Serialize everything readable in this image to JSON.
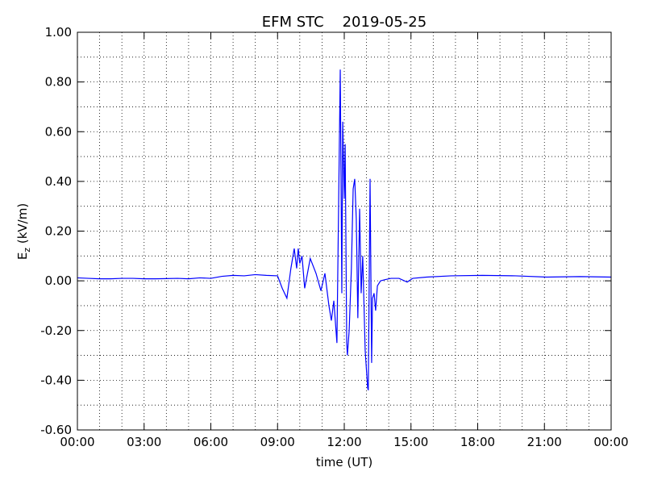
{
  "chart_data": {
    "type": "line",
    "title": "EFM STC    2019-05-25",
    "xlabel": "time (UT)",
    "ylabel": {
      "base": "E",
      "sub": "z",
      "unit": " (kV/m)"
    },
    "x": [
      0,
      0.5,
      1,
      1.5,
      2,
      2.5,
      3,
      3.5,
      4,
      4.5,
      5,
      5.5,
      6,
      6.5,
      7,
      7.5,
      8,
      8.5,
      9,
      9.21,
      9.42,
      9.6,
      9.75,
      9.86,
      9.93,
      10.0,
      10.1,
      10.22,
      10.47,
      10.73,
      10.95,
      11.13,
      11.31,
      11.42,
      11.53,
      11.67,
      11.82,
      11.89,
      11.93,
      12.0,
      12.04,
      12.11,
      12.14,
      12.22,
      12.32,
      12.4,
      12.47,
      12.54,
      12.61,
      12.69,
      12.76,
      12.83,
      12.94,
      13.05,
      13.08,
      13.16,
      13.23,
      13.27,
      13.34,
      13.41,
      13.49,
      13.63,
      13.85,
      14.1,
      14.46,
      14.83,
      15.08,
      15.7,
      16.8,
      18.2,
      19.7,
      21.1,
      22.6,
      24
    ],
    "series": [
      {
        "name": "Ez",
        "color": "#0000ff",
        "values": [
          0.012,
          0.01,
          0.008,
          0.008,
          0.01,
          0.01,
          0.008,
          0.008,
          0.009,
          0.01,
          0.008,
          0.012,
          0.01,
          0.018,
          0.022,
          0.02,
          0.025,
          0.022,
          0.02,
          -0.03,
          -0.07,
          0.05,
          0.13,
          0.05,
          0.13,
          0.07,
          0.1,
          -0.03,
          0.09,
          0.03,
          -0.04,
          0.03,
          -0.1,
          -0.16,
          -0.08,
          -0.25,
          0.85,
          -0.05,
          0.64,
          0.33,
          0.55,
          -0.25,
          -0.3,
          -0.2,
          0.05,
          0.37,
          0.41,
          0.25,
          -0.15,
          0.29,
          -0.05,
          0.1,
          -0.28,
          -0.43,
          -0.44,
          0.41,
          -0.33,
          -0.07,
          -0.05,
          -0.12,
          -0.02,
          0.0,
          0.005,
          0.01,
          0.01,
          -0.005,
          0.01,
          0.015,
          0.02,
          0.022,
          0.02,
          0.015,
          0.017,
          0.015
        ]
      }
    ],
    "xlim": [
      0,
      24
    ],
    "xticks": [
      {
        "value": 0,
        "label": "00:00"
      },
      {
        "value": 3,
        "label": "03:00"
      },
      {
        "value": 6,
        "label": "06:00"
      },
      {
        "value": 9,
        "label": "09:00"
      },
      {
        "value": 12,
        "label": "12:00"
      },
      {
        "value": 15,
        "label": "15:00"
      },
      {
        "value": 18,
        "label": "18:00"
      },
      {
        "value": 21,
        "label": "21:00"
      },
      {
        "value": 24,
        "label": "00:00"
      }
    ],
    "xminorticks": [
      1,
      2,
      4,
      5,
      7,
      8,
      10,
      11,
      13,
      14,
      16,
      17,
      19,
      20,
      22,
      23
    ],
    "ylim": [
      -0.6,
      1.0
    ],
    "yticks": [
      {
        "value": -0.6,
        "label": "-0.60"
      },
      {
        "value": -0.4,
        "label": "-0.40"
      },
      {
        "value": -0.2,
        "label": "-0.20"
      },
      {
        "value": 0,
        "label": "0.00"
      },
      {
        "value": 0.2,
        "label": "0.20"
      },
      {
        "value": 0.4,
        "label": "0.40"
      },
      {
        "value": 0.6,
        "label": "0.60"
      },
      {
        "value": 0.8,
        "label": "0.80"
      },
      {
        "value": 1.0,
        "label": "1.00"
      }
    ],
    "yminorticks": [
      -0.5,
      -0.3,
      -0.1,
      0.1,
      0.3,
      0.5,
      0.7,
      0.9
    ],
    "grid": true
  }
}
